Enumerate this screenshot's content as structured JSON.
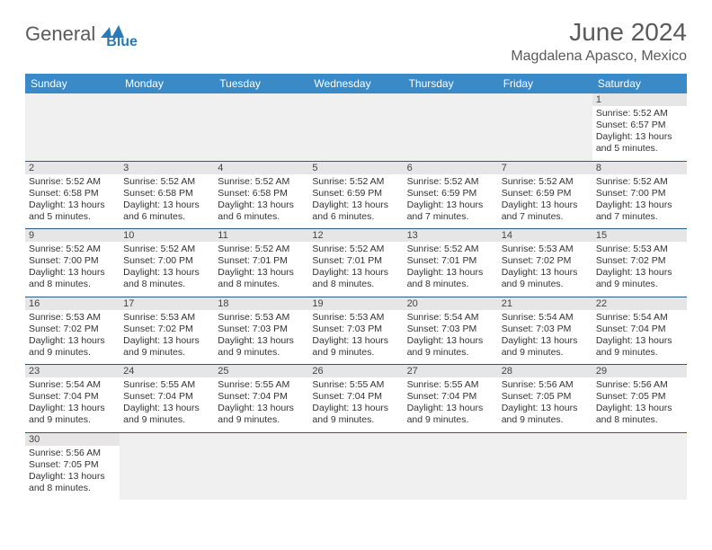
{
  "logo": {
    "text1": "General",
    "text2": "Blue"
  },
  "title": "June 2024",
  "location": "Magdalena Apasco, Mexico",
  "colors": {
    "header_bg": "#3a8ac8",
    "stripe_bg": "#e6e6e6",
    "border": "#2a5a8a",
    "logo_gray": "#5a5a5a",
    "logo_blue": "#2a7ab9"
  },
  "days": [
    "Sunday",
    "Monday",
    "Tuesday",
    "Wednesday",
    "Thursday",
    "Friday",
    "Saturday"
  ],
  "weeks": [
    [
      null,
      null,
      null,
      null,
      null,
      null,
      {
        "n": "1",
        "sunrise": "Sunrise: 5:52 AM",
        "sunset": "Sunset: 6:57 PM",
        "d1": "Daylight: 13 hours",
        "d2": "and 5 minutes."
      }
    ],
    [
      {
        "n": "2",
        "sunrise": "Sunrise: 5:52 AM",
        "sunset": "Sunset: 6:58 PM",
        "d1": "Daylight: 13 hours",
        "d2": "and 5 minutes."
      },
      {
        "n": "3",
        "sunrise": "Sunrise: 5:52 AM",
        "sunset": "Sunset: 6:58 PM",
        "d1": "Daylight: 13 hours",
        "d2": "and 6 minutes."
      },
      {
        "n": "4",
        "sunrise": "Sunrise: 5:52 AM",
        "sunset": "Sunset: 6:58 PM",
        "d1": "Daylight: 13 hours",
        "d2": "and 6 minutes."
      },
      {
        "n": "5",
        "sunrise": "Sunrise: 5:52 AM",
        "sunset": "Sunset: 6:59 PM",
        "d1": "Daylight: 13 hours",
        "d2": "and 6 minutes."
      },
      {
        "n": "6",
        "sunrise": "Sunrise: 5:52 AM",
        "sunset": "Sunset: 6:59 PM",
        "d1": "Daylight: 13 hours",
        "d2": "and 7 minutes."
      },
      {
        "n": "7",
        "sunrise": "Sunrise: 5:52 AM",
        "sunset": "Sunset: 6:59 PM",
        "d1": "Daylight: 13 hours",
        "d2": "and 7 minutes."
      },
      {
        "n": "8",
        "sunrise": "Sunrise: 5:52 AM",
        "sunset": "Sunset: 7:00 PM",
        "d1": "Daylight: 13 hours",
        "d2": "and 7 minutes."
      }
    ],
    [
      {
        "n": "9",
        "sunrise": "Sunrise: 5:52 AM",
        "sunset": "Sunset: 7:00 PM",
        "d1": "Daylight: 13 hours",
        "d2": "and 8 minutes."
      },
      {
        "n": "10",
        "sunrise": "Sunrise: 5:52 AM",
        "sunset": "Sunset: 7:00 PM",
        "d1": "Daylight: 13 hours",
        "d2": "and 8 minutes."
      },
      {
        "n": "11",
        "sunrise": "Sunrise: 5:52 AM",
        "sunset": "Sunset: 7:01 PM",
        "d1": "Daylight: 13 hours",
        "d2": "and 8 minutes."
      },
      {
        "n": "12",
        "sunrise": "Sunrise: 5:52 AM",
        "sunset": "Sunset: 7:01 PM",
        "d1": "Daylight: 13 hours",
        "d2": "and 8 minutes."
      },
      {
        "n": "13",
        "sunrise": "Sunrise: 5:52 AM",
        "sunset": "Sunset: 7:01 PM",
        "d1": "Daylight: 13 hours",
        "d2": "and 8 minutes."
      },
      {
        "n": "14",
        "sunrise": "Sunrise: 5:53 AM",
        "sunset": "Sunset: 7:02 PM",
        "d1": "Daylight: 13 hours",
        "d2": "and 9 minutes."
      },
      {
        "n": "15",
        "sunrise": "Sunrise: 5:53 AM",
        "sunset": "Sunset: 7:02 PM",
        "d1": "Daylight: 13 hours",
        "d2": "and 9 minutes."
      }
    ],
    [
      {
        "n": "16",
        "sunrise": "Sunrise: 5:53 AM",
        "sunset": "Sunset: 7:02 PM",
        "d1": "Daylight: 13 hours",
        "d2": "and 9 minutes."
      },
      {
        "n": "17",
        "sunrise": "Sunrise: 5:53 AM",
        "sunset": "Sunset: 7:02 PM",
        "d1": "Daylight: 13 hours",
        "d2": "and 9 minutes."
      },
      {
        "n": "18",
        "sunrise": "Sunrise: 5:53 AM",
        "sunset": "Sunset: 7:03 PM",
        "d1": "Daylight: 13 hours",
        "d2": "and 9 minutes."
      },
      {
        "n": "19",
        "sunrise": "Sunrise: 5:53 AM",
        "sunset": "Sunset: 7:03 PM",
        "d1": "Daylight: 13 hours",
        "d2": "and 9 minutes."
      },
      {
        "n": "20",
        "sunrise": "Sunrise: 5:54 AM",
        "sunset": "Sunset: 7:03 PM",
        "d1": "Daylight: 13 hours",
        "d2": "and 9 minutes."
      },
      {
        "n": "21",
        "sunrise": "Sunrise: 5:54 AM",
        "sunset": "Sunset: 7:03 PM",
        "d1": "Daylight: 13 hours",
        "d2": "and 9 minutes."
      },
      {
        "n": "22",
        "sunrise": "Sunrise: 5:54 AM",
        "sunset": "Sunset: 7:04 PM",
        "d1": "Daylight: 13 hours",
        "d2": "and 9 minutes."
      }
    ],
    [
      {
        "n": "23",
        "sunrise": "Sunrise: 5:54 AM",
        "sunset": "Sunset: 7:04 PM",
        "d1": "Daylight: 13 hours",
        "d2": "and 9 minutes."
      },
      {
        "n": "24",
        "sunrise": "Sunrise: 5:55 AM",
        "sunset": "Sunset: 7:04 PM",
        "d1": "Daylight: 13 hours",
        "d2": "and 9 minutes."
      },
      {
        "n": "25",
        "sunrise": "Sunrise: 5:55 AM",
        "sunset": "Sunset: 7:04 PM",
        "d1": "Daylight: 13 hours",
        "d2": "and 9 minutes."
      },
      {
        "n": "26",
        "sunrise": "Sunrise: 5:55 AM",
        "sunset": "Sunset: 7:04 PM",
        "d1": "Daylight: 13 hours",
        "d2": "and 9 minutes."
      },
      {
        "n": "27",
        "sunrise": "Sunrise: 5:55 AM",
        "sunset": "Sunset: 7:04 PM",
        "d1": "Daylight: 13 hours",
        "d2": "and 9 minutes."
      },
      {
        "n": "28",
        "sunrise": "Sunrise: 5:56 AM",
        "sunset": "Sunset: 7:05 PM",
        "d1": "Daylight: 13 hours",
        "d2": "and 9 minutes."
      },
      {
        "n": "29",
        "sunrise": "Sunrise: 5:56 AM",
        "sunset": "Sunset: 7:05 PM",
        "d1": "Daylight: 13 hours",
        "d2": "and 8 minutes."
      }
    ],
    [
      {
        "n": "30",
        "sunrise": "Sunrise: 5:56 AM",
        "sunset": "Sunset: 7:05 PM",
        "d1": "Daylight: 13 hours",
        "d2": "and 8 minutes."
      },
      null,
      null,
      null,
      null,
      null,
      null
    ]
  ]
}
